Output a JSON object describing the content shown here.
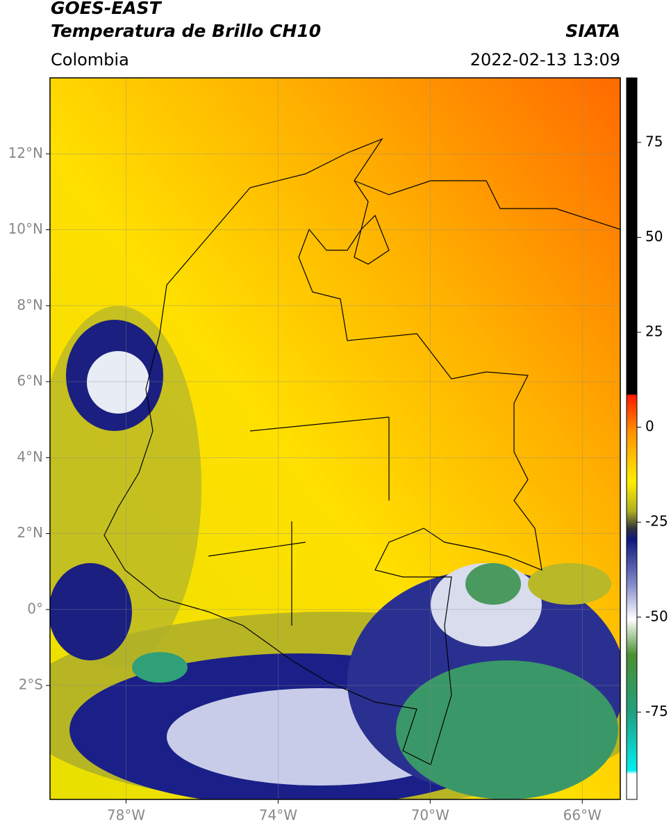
{
  "header": {
    "title": "GOES-EAST",
    "subtitle": "Temperatura de Brillo CH10",
    "source": "SIATA",
    "region": "Colombia",
    "timestamp": "2022-02-13 13:09"
  },
  "map": {
    "xlim": [
      -80,
      -65
    ],
    "ylim": [
      -5,
      14
    ],
    "xticks": [
      {
        "value": -78,
        "label": "78°W"
      },
      {
        "value": -74,
        "label": "74°W"
      },
      {
        "value": -70,
        "label": "70°W"
      },
      {
        "value": -66,
        "label": "66°W"
      }
    ],
    "yticks": [
      {
        "value": 12,
        "label": "12°N"
      },
      {
        "value": 10,
        "label": "10°N"
      },
      {
        "value": 8,
        "label": "8°N"
      },
      {
        "value": 6,
        "label": "6°N"
      },
      {
        "value": 4,
        "label": "4°N"
      },
      {
        "value": 2,
        "label": "2°N"
      },
      {
        "value": 0,
        "label": "0°"
      },
      {
        "value": -2,
        "label": "2°S"
      }
    ],
    "grid": true
  },
  "colorbar": {
    "lim": [
      -98,
      92
    ],
    "ticks": [
      75,
      50,
      25,
      0,
      -25,
      -50,
      -75
    ]
  }
}
